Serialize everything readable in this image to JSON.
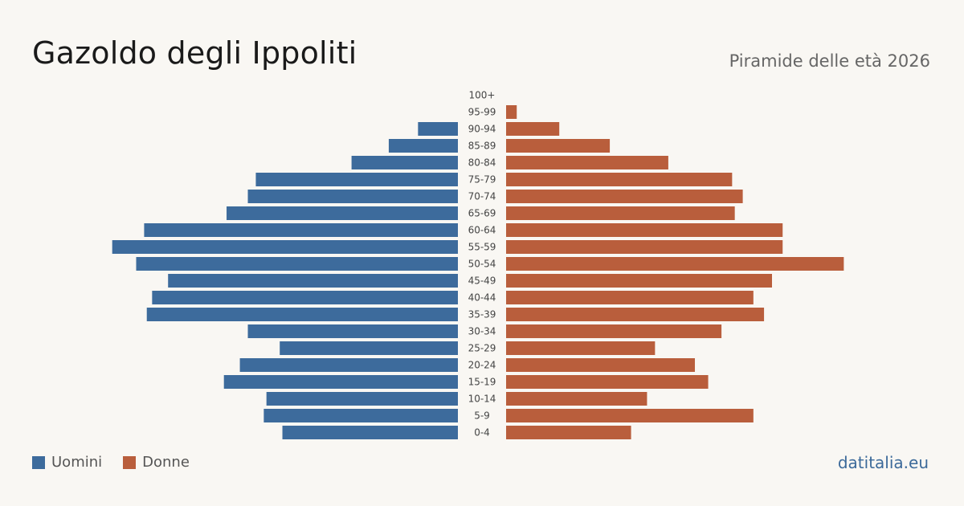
{
  "header": {
    "title": "Gazoldo degli Ippoliti",
    "subtitle": "Piramide delle età 2026"
  },
  "footer": {
    "source": "datitalia.eu"
  },
  "colors": {
    "men": "#3d6b9c",
    "women": "#b95e3c"
  },
  "chart_data": {
    "type": "bar",
    "orientation": "horizontal-pyramid",
    "categories": [
      "100+",
      "95-99",
      "90-94",
      "85-89",
      "80-84",
      "75-79",
      "70-74",
      "65-69",
      "60-64",
      "55-59",
      "50-54",
      "45-49",
      "40-44",
      "35-39",
      "30-34",
      "25-29",
      "20-24",
      "15-19",
      "10-14",
      "5-9",
      "0-4"
    ],
    "series": [
      {
        "name": "Uomini",
        "values": [
          0,
          0,
          15,
          26,
          40,
          76,
          79,
          87,
          118,
          130,
          121,
          109,
          115,
          117,
          79,
          67,
          82,
          88,
          72,
          73,
          66
        ]
      },
      {
        "name": "Donne",
        "values": [
          0,
          4,
          20,
          39,
          61,
          85,
          89,
          86,
          104,
          104,
          127,
          100,
          93,
          97,
          81,
          56,
          71,
          76,
          53,
          93,
          47
        ]
      }
    ],
    "legend": [
      "Uomini",
      "Donne"
    ],
    "legend_position": "bottom-left",
    "grid": false
  }
}
